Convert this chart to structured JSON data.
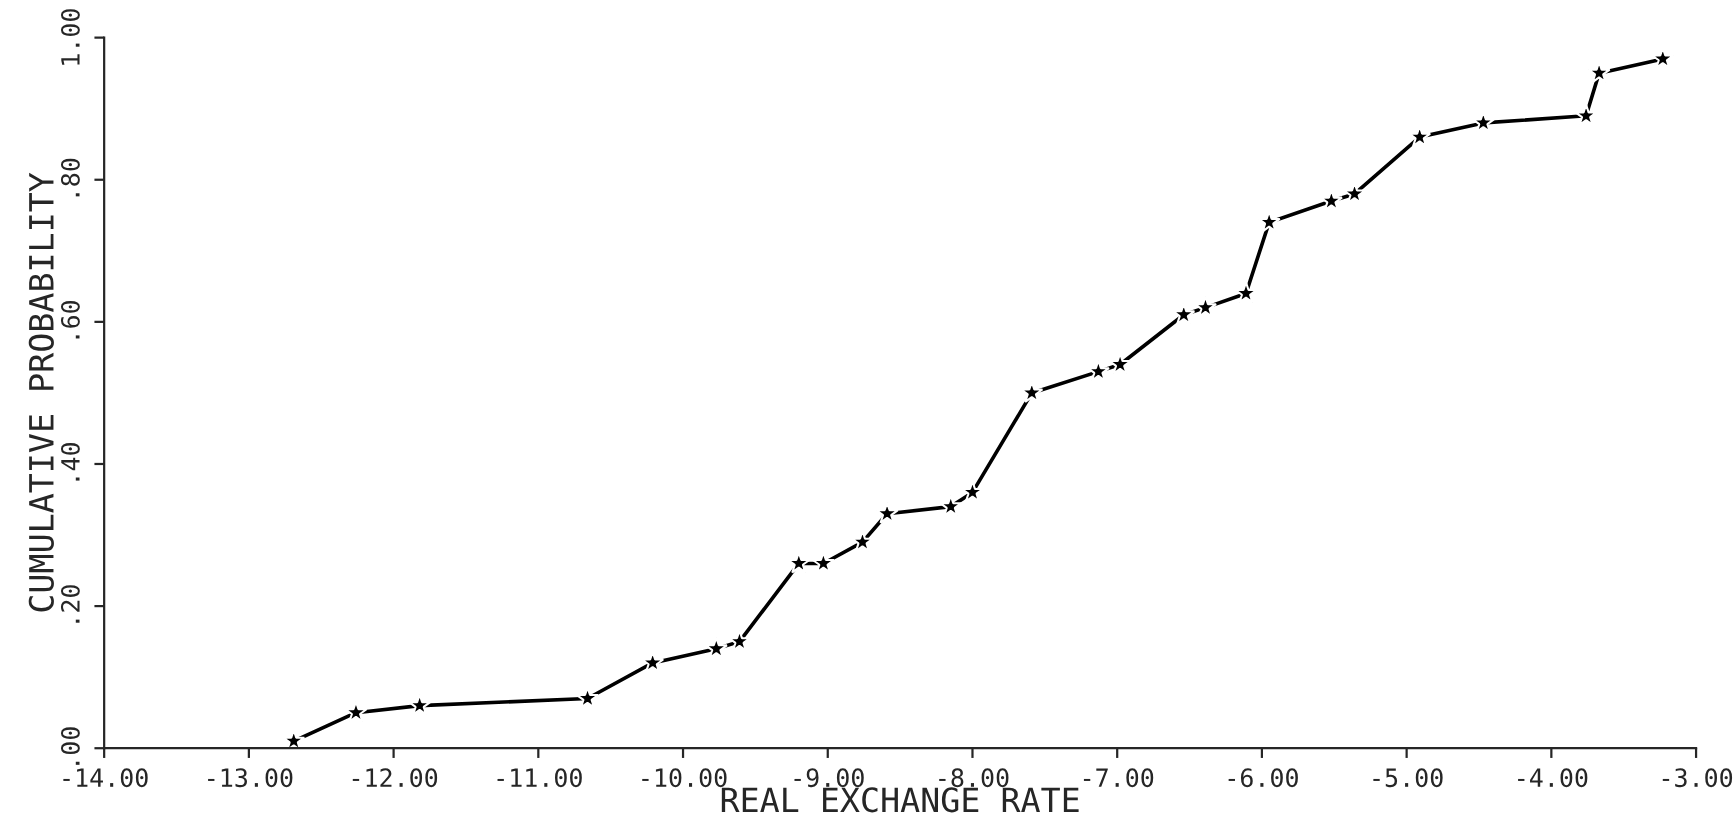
{
  "chart_data": {
    "type": "line",
    "xlabel": "REAL EXCHANGE RATE",
    "ylabel": "CUMULATIVE PROBABILITY",
    "xlim": [
      -14,
      -3
    ],
    "ylim": [
      0,
      1
    ],
    "xticks": [
      {
        "value": -14,
        "label": "-14.00"
      },
      {
        "value": -13,
        "label": "-13.00"
      },
      {
        "value": -12,
        "label": "-12.00"
      },
      {
        "value": -11,
        "label": "-11.00"
      },
      {
        "value": -10,
        "label": "-10.00"
      },
      {
        "value": -9,
        "label": "-9.00"
      },
      {
        "value": -8,
        "label": "-8.00"
      },
      {
        "value": -7,
        "label": "-7.00"
      },
      {
        "value": -6,
        "label": "-6.00"
      },
      {
        "value": -5,
        "label": "-5.00"
      },
      {
        "value": -4,
        "label": "-4.00"
      },
      {
        "value": -3,
        "label": "-3.00"
      }
    ],
    "yticks": [
      {
        "value": 0,
        "label": ".00"
      },
      {
        "value": 0.2,
        "label": ".20"
      },
      {
        "value": 0.4,
        "label": ".40"
      },
      {
        "value": 0.6,
        "label": ".60"
      },
      {
        "value": 0.8,
        "label": ".80"
      },
      {
        "value": 1,
        "label": "1.00"
      }
    ],
    "grid": false,
    "marker": "star",
    "line_style": "solid",
    "legend": false,
    "series": [
      {
        "color": "#000000",
        "x": [
          -12.69,
          -12.26,
          -11.82,
          -10.66,
          -10.21,
          -9.77,
          -9.61,
          -9.2,
          -9.03,
          -8.76,
          -8.59,
          -8.15,
          -8.0,
          -7.59,
          -7.13,
          -6.98,
          -6.54,
          -6.39,
          -6.11,
          -5.95,
          -5.52,
          -5.36,
          -4.91,
          -4.47,
          -3.76,
          -3.67,
          -3.23
        ],
        "values": [
          0.01,
          0.05,
          0.06,
          0.07,
          0.12,
          0.14,
          0.15,
          0.26,
          0.26,
          0.29,
          0.33,
          0.34,
          0.36,
          0.5,
          0.53,
          0.54,
          0.61,
          0.62,
          0.64,
          0.74,
          0.77,
          0.78,
          0.86,
          0.88,
          0.89,
          0.95,
          0.97
        ]
      }
    ]
  }
}
